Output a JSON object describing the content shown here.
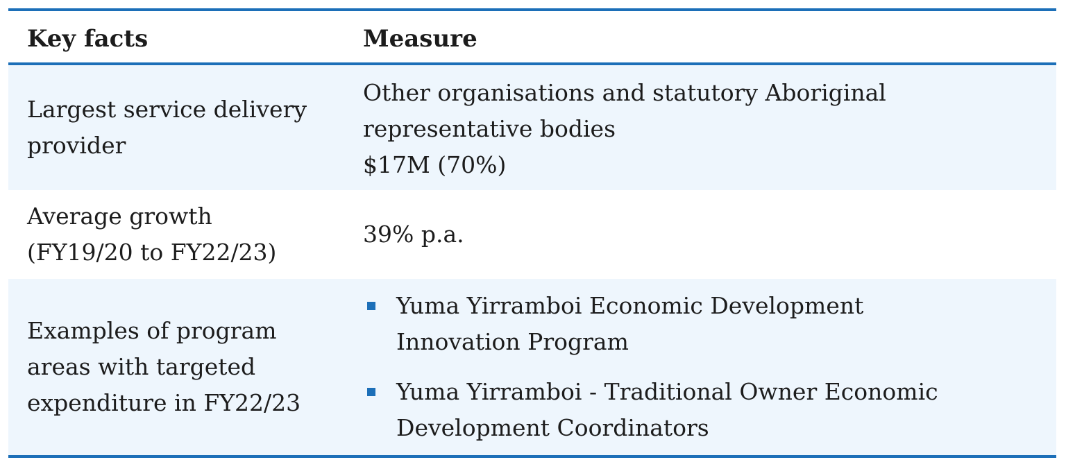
{
  "table": {
    "headers": {
      "key_facts": "Key facts",
      "measure": "Measure"
    },
    "rows": [
      {
        "label_lines": [
          "Largest service delivery",
          "provider"
        ],
        "measure_lines": [
          "Other organisations and statutory Aboriginal",
          "representative bodies",
          "$17M (70%)"
        ]
      },
      {
        "label_lines": [
          "Average growth",
          "(FY19/20 to FY22/23)"
        ],
        "measure_lines": [
          "39% p.a."
        ]
      },
      {
        "label_lines": [
          "Examples of program",
          "areas with targeted",
          "expenditure in FY22/23"
        ],
        "bullets": [
          {
            "lines": [
              "Yuma Yirramboi Economic Development",
              "Innovation Program"
            ]
          },
          {
            "lines": [
              "Yuma Yirramboi - Traditional Owner Economic",
              "Development Coordinators"
            ]
          }
        ]
      }
    ],
    "colors": {
      "rule": "#1c6fb8",
      "shaded_row": "#eef6fd",
      "bullet": "#1c6fb8"
    }
  }
}
